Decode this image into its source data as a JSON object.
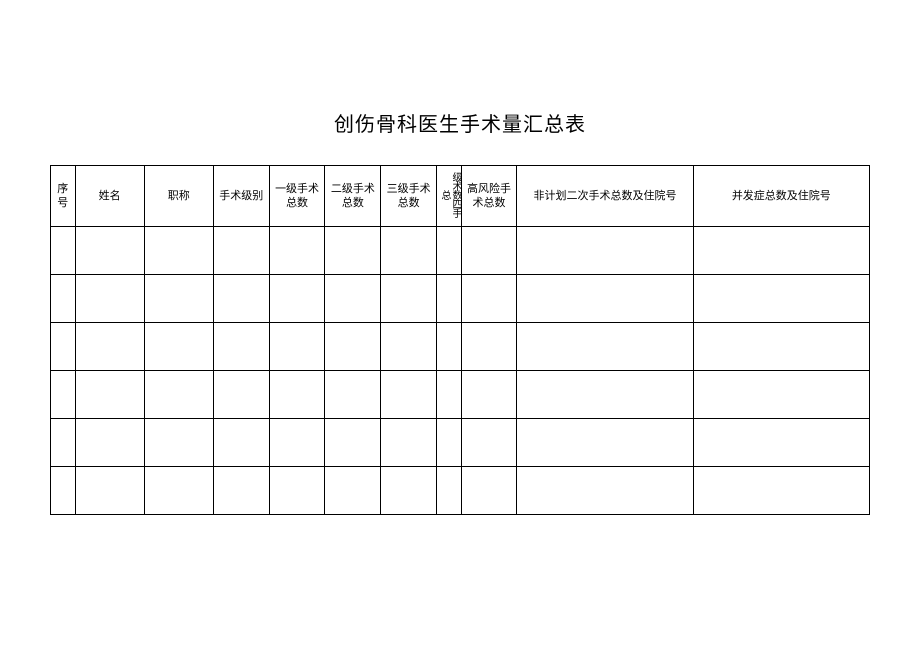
{
  "title": "创伤骨科医生手术量汇总表",
  "table": {
    "columns": [
      {
        "label": "序号",
        "class": "col-0"
      },
      {
        "label": "姓名",
        "class": "col-1"
      },
      {
        "label": "职称",
        "class": "col-2"
      },
      {
        "label": "手术级别",
        "class": "col-3"
      },
      {
        "label": "一级手术总数",
        "class": "col-4"
      },
      {
        "label": "二级手术总数",
        "class": "col-5"
      },
      {
        "label": "三级手术总数",
        "class": "col-6"
      },
      {
        "label": "级术数四手总",
        "class": "col-7",
        "vertical": true
      },
      {
        "label": "高风险手术总数",
        "class": "col-8"
      },
      {
        "label": "非计划二次手术总数及住院号",
        "class": "col-9"
      },
      {
        "label": "并发症总数及住院号",
        "class": "col-10"
      }
    ],
    "row_count": 6,
    "border_color": "#000000",
    "background_color": "#ffffff",
    "header_fontsize": 11,
    "title_fontsize": 20
  }
}
